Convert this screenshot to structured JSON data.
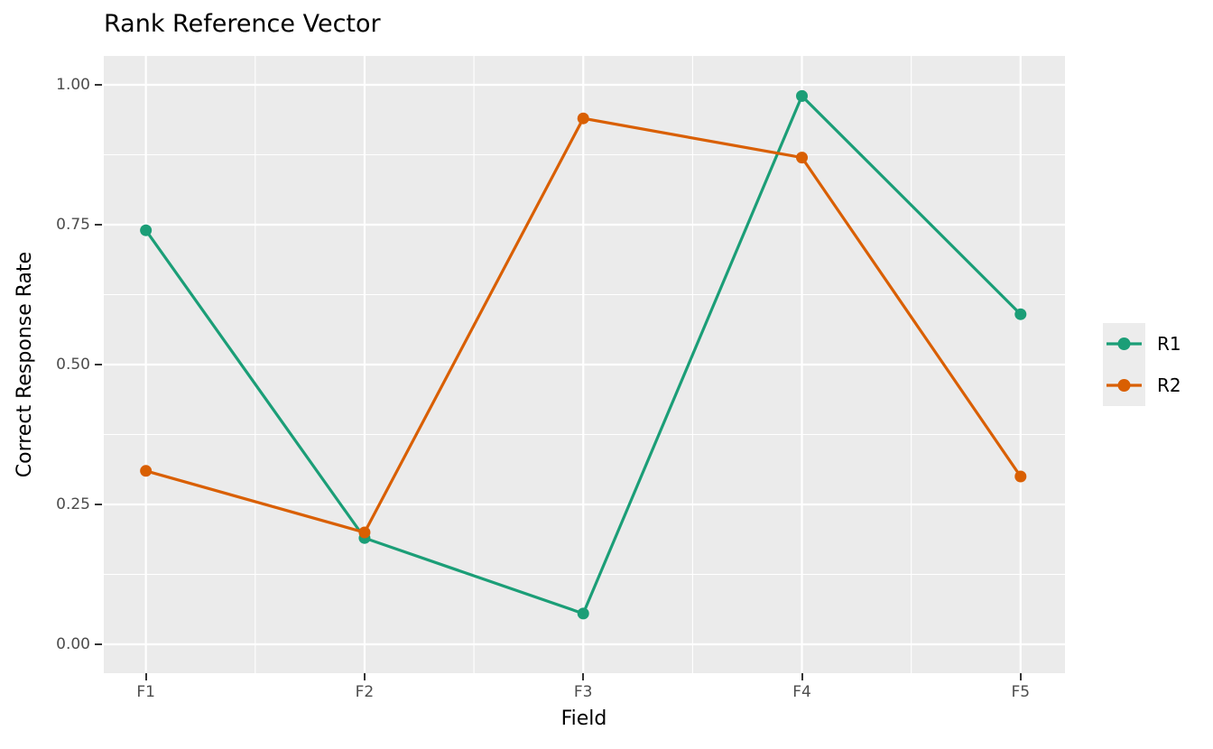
{
  "title": "Rank Reference Vector",
  "chart_data": {
    "type": "line",
    "title": "Rank Reference Vector",
    "xlabel": "Field",
    "ylabel": "Correct Response Rate",
    "categories": [
      "F1",
      "F2",
      "F3",
      "F4",
      "F5"
    ],
    "series": [
      {
        "name": "R1",
        "color": "#1B9E77",
        "values": [
          0.74,
          0.19,
          0.055,
          0.98,
          0.59
        ]
      },
      {
        "name": "R2",
        "color": "#D95F02",
        "values": [
          0.31,
          0.2,
          0.94,
          0.87,
          0.3
        ]
      }
    ],
    "ylim": [
      -0.05,
      1.05
    ],
    "y_major_ticks": [
      0.0,
      0.25,
      0.5,
      0.75,
      1.0
    ],
    "y_tick_labels": [
      "0.00",
      "0.25",
      "0.50",
      "0.75",
      "1.00"
    ],
    "y_minor_ticks": [
      0.125,
      0.375,
      0.625,
      0.875
    ],
    "grid": "major-and-minor, white on gray panel",
    "legend_position": "right",
    "style": "ggplot2"
  },
  "colors": {
    "series_r1": "#1B9E77",
    "series_r2": "#D95F02",
    "panel_background": "#EBEBEB",
    "gridline": "#FFFFFF",
    "tick_text": "#4D4D4D",
    "tick_mark": "#333333",
    "figure_background": "#FFFFFF"
  }
}
